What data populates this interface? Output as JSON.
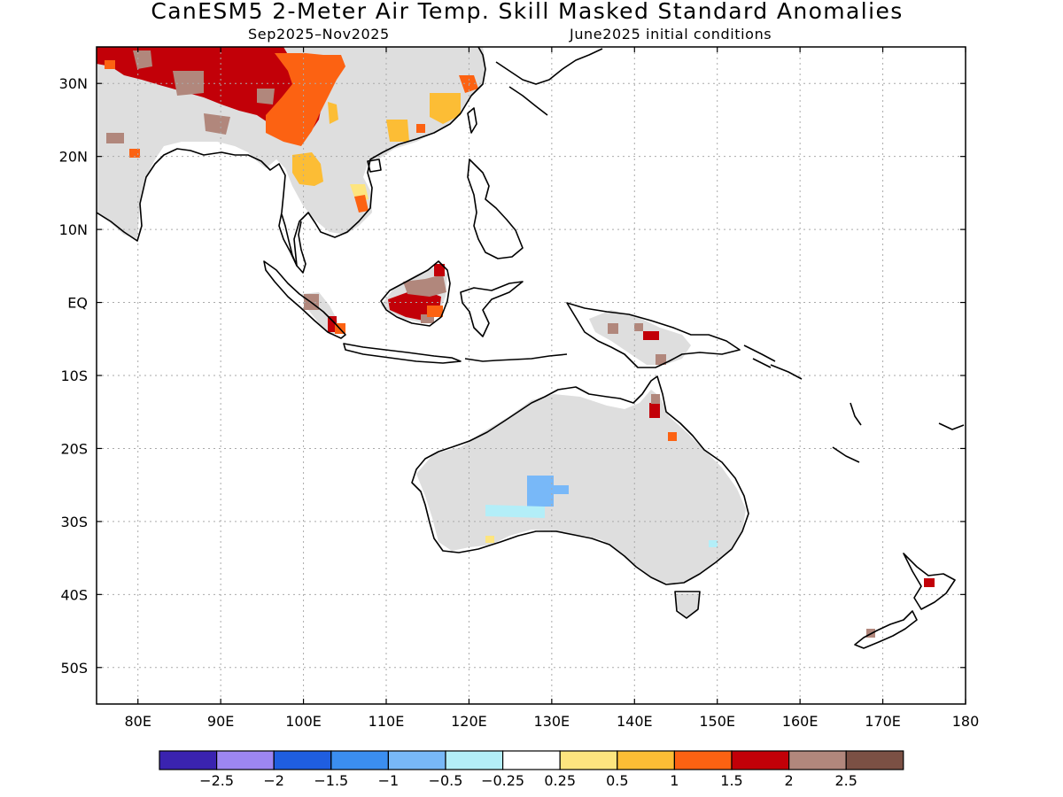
{
  "title": "CanESM5 2-Meter Air Temp. Skill Masked Standard Anomalies",
  "subtitle_left": "Sep2025–Nov2025",
  "subtitle_right": "June2025 initial conditions",
  "map": {
    "lon_range": [
      75,
      180
    ],
    "lat_range": [
      -55,
      35
    ],
    "lat_ticks": [
      {
        "value": 30,
        "label": "30N"
      },
      {
        "value": 20,
        "label": "20N"
      },
      {
        "value": 10,
        "label": "10N"
      },
      {
        "value": 0,
        "label": "EQ"
      },
      {
        "value": -10,
        "label": "10S"
      },
      {
        "value": -20,
        "label": "20S"
      },
      {
        "value": -30,
        "label": "30S"
      },
      {
        "value": -40,
        "label": "40S"
      },
      {
        "value": -50,
        "label": "50S"
      }
    ],
    "lon_ticks": [
      {
        "value": 80,
        "label": "80E"
      },
      {
        "value": 90,
        "label": "90E"
      },
      {
        "value": 100,
        "label": "100E"
      },
      {
        "value": 110,
        "label": "110E"
      },
      {
        "value": 120,
        "label": "120E"
      },
      {
        "value": 130,
        "label": "130E"
      },
      {
        "value": 140,
        "label": "140E"
      },
      {
        "value": 150,
        "label": "150E"
      },
      {
        "value": 160,
        "label": "160E"
      },
      {
        "value": 170,
        "label": "170E"
      },
      {
        "value": 180,
        "label": "180"
      }
    ],
    "grid": true
  },
  "colorbar": {
    "colors": [
      "#3a23b0",
      "#9d86f2",
      "#1f5ee0",
      "#3b8ef0",
      "#78b8f8",
      "#b3eef8",
      "#ffffff",
      "#fde57f",
      "#fcbd35",
      "#fc6212",
      "#c20008",
      "#b1877c",
      "#7b5044"
    ],
    "labels": [
      "−2.5",
      "−2",
      "−1.5",
      "−1",
      "−0.5",
      "−0.25",
      "0.25",
      "0.5",
      "1",
      "1.5",
      "2",
      "2.5"
    ]
  },
  "colors": {
    "skill_mask_gray": "#dedede",
    "coastline": "#000000",
    "grid": "#aaaaaa"
  }
}
